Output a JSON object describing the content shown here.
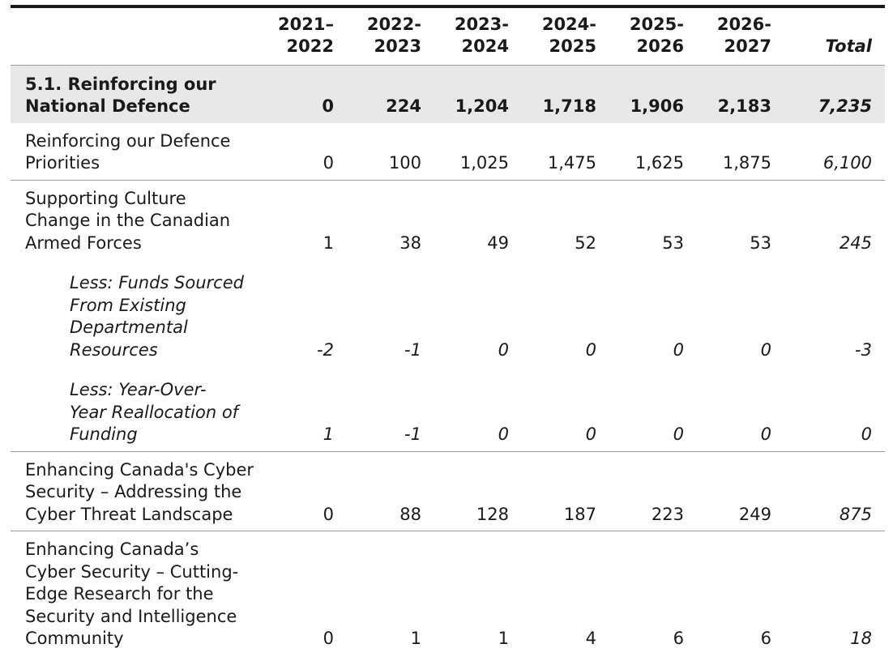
{
  "header": {
    "label": "",
    "years": [
      [
        "2021–",
        "2022"
      ],
      [
        "2022-",
        "2023"
      ],
      [
        "2023-",
        "2024"
      ],
      [
        "2024-",
        "2025"
      ],
      [
        "2025-",
        "2026"
      ],
      [
        "2026-",
        "2027"
      ]
    ],
    "total": "Total"
  },
  "rows": [
    {
      "label": [
        "5.1. Reinforcing our",
        "National Defence"
      ],
      "values": [
        "0",
        "224",
        "1,204",
        "1,718",
        "1,906",
        "2,183"
      ],
      "total": "7,235"
    },
    {
      "label": [
        "Reinforcing our Defence",
        "Priorities"
      ],
      "values": [
        "0",
        "100",
        "1,025",
        "1,475",
        "1,625",
        "1,875"
      ],
      "total": "6,100"
    },
    {
      "label": [
        "Supporting Culture",
        "Change in the Canadian",
        "Armed Forces"
      ],
      "values": [
        "1",
        "38",
        "49",
        "52",
        "53",
        "53"
      ],
      "total": "245"
    },
    {
      "label": [
        "Less: Funds Sourced",
        "From Existing",
        "Departmental",
        "Resources"
      ],
      "values": [
        "-2",
        "-1",
        "0",
        "0",
        "0",
        "0"
      ],
      "total": "-3"
    },
    {
      "label": [
        "Less: Year-Over-",
        "Year Reallocation of",
        "Funding"
      ],
      "values": [
        "1",
        "-1",
        "0",
        "0",
        "0",
        "0"
      ],
      "total": "0"
    },
    {
      "label": [
        "Enhancing Canada's Cyber",
        "Security – Addressing the",
        "Cyber Threat Landscape"
      ],
      "values": [
        "0",
        "88",
        "128",
        "187",
        "223",
        "249"
      ],
      "total": "875"
    },
    {
      "label": [
        "Enhancing Canada’s",
        "Cyber Security – Cutting-",
        "Edge Research for the",
        "Security and Intelligence",
        "Community"
      ],
      "values": [
        "0",
        "1",
        "1",
        "4",
        "6",
        "6"
      ],
      "total": "18"
    }
  ]
}
